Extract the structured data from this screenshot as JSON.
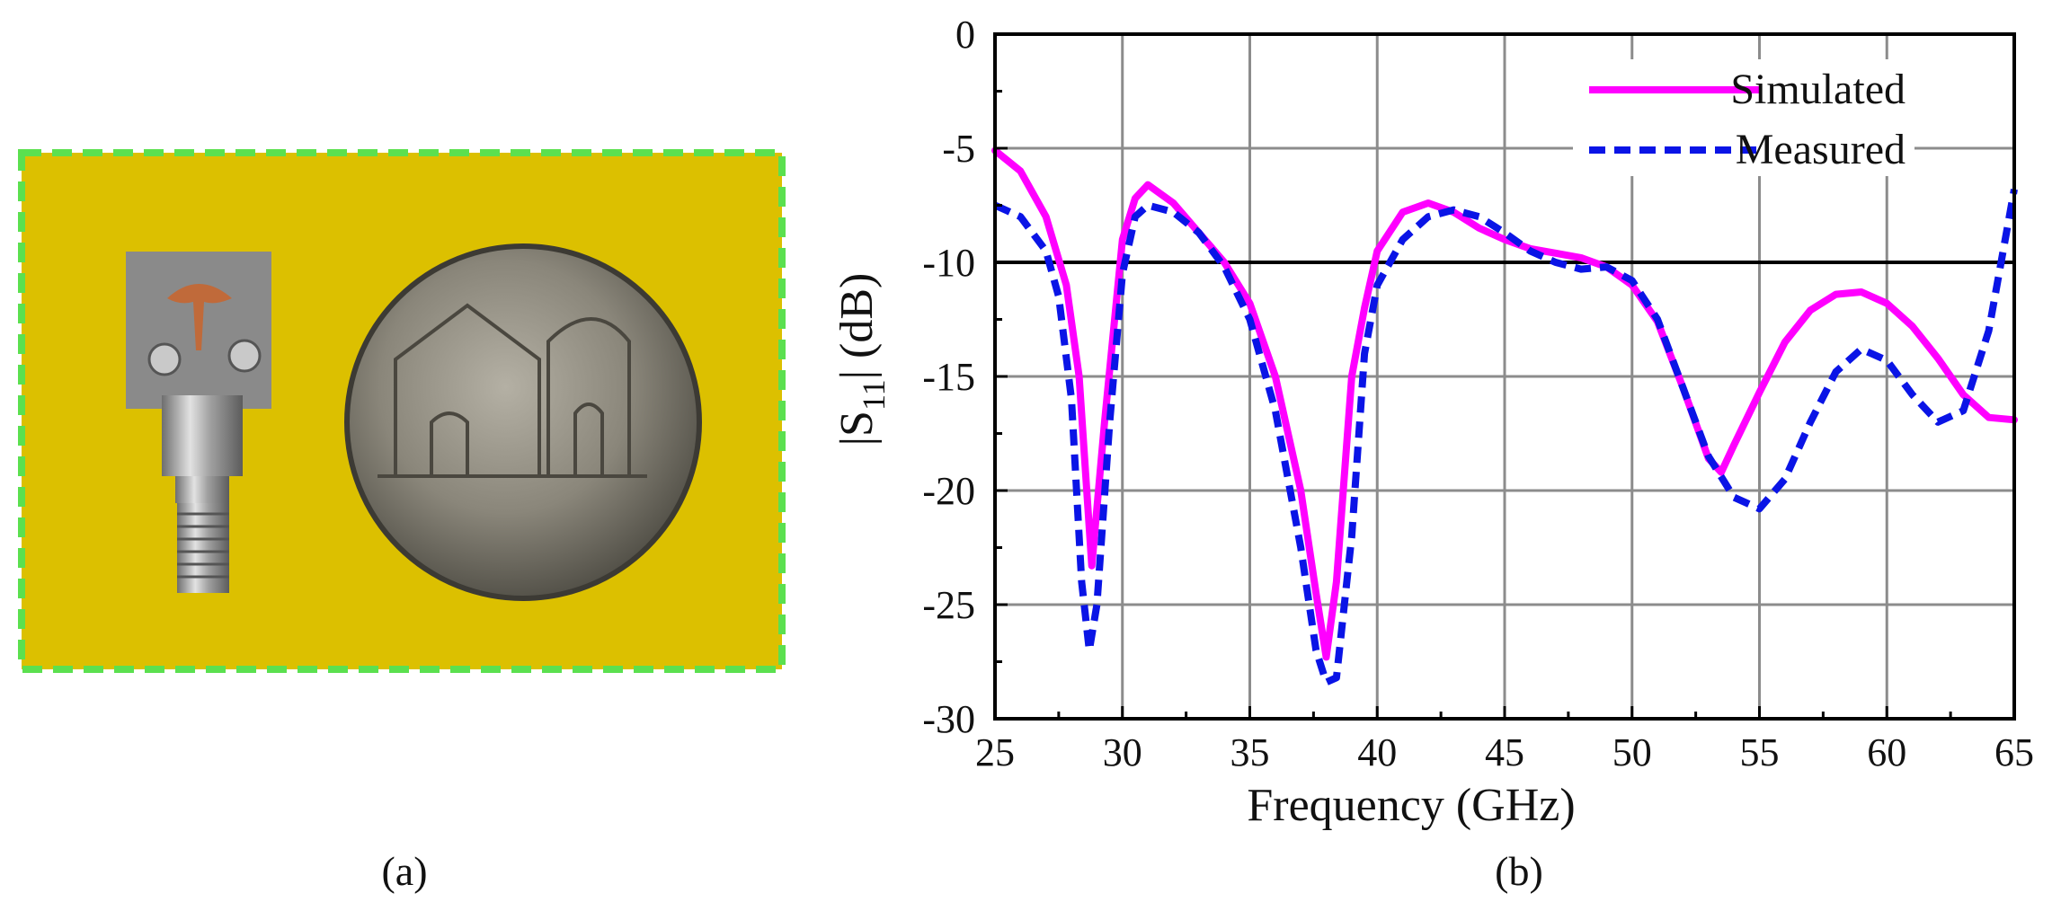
{
  "panel_a": {
    "caption": "(a)",
    "colors": {
      "background": "#dcc000",
      "border": "#5be04f",
      "substrate": "#8a8a8a",
      "patch": "#c06a3a",
      "metal": "#a8a8a8",
      "coin": "#7d7a6f"
    },
    "image_description": "photo of fabricated antenna with SMA connector next to a coin"
  },
  "panel_b": {
    "caption": "(b)"
  },
  "chart_data": {
    "type": "line",
    "xlabel": "Frequency (GHz)",
    "ylabel_main": "|S",
    "ylabel_sub": "11",
    "ylabel_rest": "| (dB)",
    "xlim": [
      25,
      65
    ],
    "ylim": [
      -30,
      0
    ],
    "xticks": [
      25,
      30,
      35,
      40,
      45,
      50,
      55,
      60,
      65
    ],
    "yticks": [
      0,
      -5,
      -10,
      -15,
      -20,
      -25,
      -30
    ],
    "xtick_labels": [
      "25",
      "30",
      "35",
      "40",
      "45",
      "50",
      "55",
      "60",
      "65"
    ],
    "ytick_labels": [
      "0",
      "-5",
      "-10",
      "-15",
      "-20",
      "-25",
      "-30"
    ],
    "grid": true,
    "legend_position": "top-right",
    "reference_line": {
      "y": -10,
      "color": "#000000"
    },
    "series": [
      {
        "name": "Simulated",
        "color": "#ff00ff",
        "style": "solid",
        "x": [
          25,
          26,
          27,
          27.8,
          28.3,
          28.8,
          29.3,
          30,
          30.5,
          31,
          32,
          33,
          34,
          35,
          36,
          37,
          37.6,
          38,
          38.4,
          39,
          39.5,
          40,
          41,
          42,
          43,
          44,
          45,
          46,
          47,
          48,
          49,
          50,
          51,
          52,
          53,
          53.5,
          54,
          55,
          56,
          57,
          58,
          59,
          60,
          61,
          62,
          63,
          64,
          65
        ],
        "y": [
          -5.1,
          -6,
          -8,
          -11,
          -15,
          -23.3,
          -17,
          -9,
          -7.2,
          -6.6,
          -7.4,
          -8.7,
          -10,
          -11.8,
          -15,
          -20,
          -24.5,
          -27.3,
          -24,
          -15,
          -12,
          -9.5,
          -7.8,
          -7.4,
          -7.8,
          -8.5,
          -9,
          -9.4,
          -9.6,
          -9.8,
          -10.2,
          -11,
          -12.6,
          -15.5,
          -18.6,
          -19.2,
          -18,
          -15.7,
          -13.5,
          -12.1,
          -11.4,
          -11.3,
          -11.8,
          -12.8,
          -14.2,
          -15.8,
          -16.8,
          -16.9
        ]
      },
      {
        "name": "Measured",
        "color": "#0a14e6",
        "style": "dashed",
        "x": [
          25,
          26,
          27,
          27.5,
          28,
          28.4,
          28.7,
          29,
          29.5,
          30,
          30.5,
          31,
          32,
          33,
          34,
          35,
          36,
          37,
          37.6,
          38,
          38.4,
          39,
          39.5,
          40,
          41,
          42,
          43,
          44,
          45,
          46,
          47,
          48,
          49,
          50,
          51,
          52,
          53,
          54,
          55,
          56,
          57,
          58,
          59,
          60,
          61,
          62,
          63,
          64,
          65
        ],
        "y": [
          -7.5,
          -8,
          -9.5,
          -11.5,
          -16,
          -24,
          -27,
          -25,
          -17,
          -10.5,
          -8,
          -7.5,
          -7.8,
          -8.7,
          -10.2,
          -12.5,
          -16.5,
          -22.5,
          -27,
          -28.4,
          -28.2,
          -22,
          -14,
          -11,
          -9,
          -8,
          -7.7,
          -8,
          -8.7,
          -9.5,
          -10,
          -10.3,
          -10.2,
          -10.8,
          -12.5,
          -15.5,
          -18.5,
          -20.3,
          -20.8,
          -19.5,
          -17,
          -14.8,
          -13.8,
          -14.3,
          -15.8,
          -17,
          -16.5,
          -13,
          -6.8
        ]
      }
    ]
  }
}
